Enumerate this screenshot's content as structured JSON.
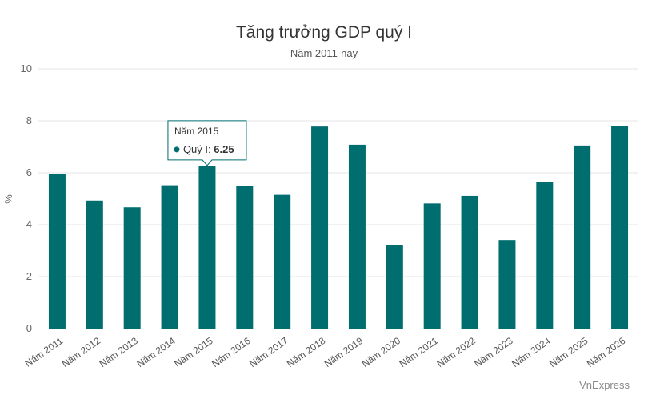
{
  "chart_data": {
    "type": "bar",
    "title": "Tăng trưởng GDP quý I",
    "subtitle": "Năm 2011-nay",
    "ylabel": "%",
    "ylim": [
      0,
      10
    ],
    "yticks": [
      0,
      2,
      4,
      6,
      8,
      10
    ],
    "grid": true,
    "bar_color": "#006d6f",
    "categories": [
      "Năm 2011",
      "Năm 2012",
      "Năm 2013",
      "Năm 2014",
      "Năm 2015",
      "Năm 2016",
      "Năm 2017",
      "Năm 2018",
      "Năm 2019",
      "Năm 2020",
      "Năm 2021",
      "Năm 2022",
      "Năm 2023",
      "Năm 2024",
      "Năm 2025",
      "Năm 2026"
    ],
    "series": [
      {
        "name": "Quý I",
        "values": [
          5.95,
          4.93,
          4.67,
          5.52,
          6.25,
          5.48,
          5.15,
          7.78,
          7.08,
          3.2,
          4.82,
          5.11,
          3.41,
          5.66,
          7.05,
          7.8
        ]
      }
    ],
    "tooltip": {
      "category": "Năm 2015",
      "series_label": "Quý I",
      "value": "6.25"
    },
    "credit": "VnExpress"
  }
}
